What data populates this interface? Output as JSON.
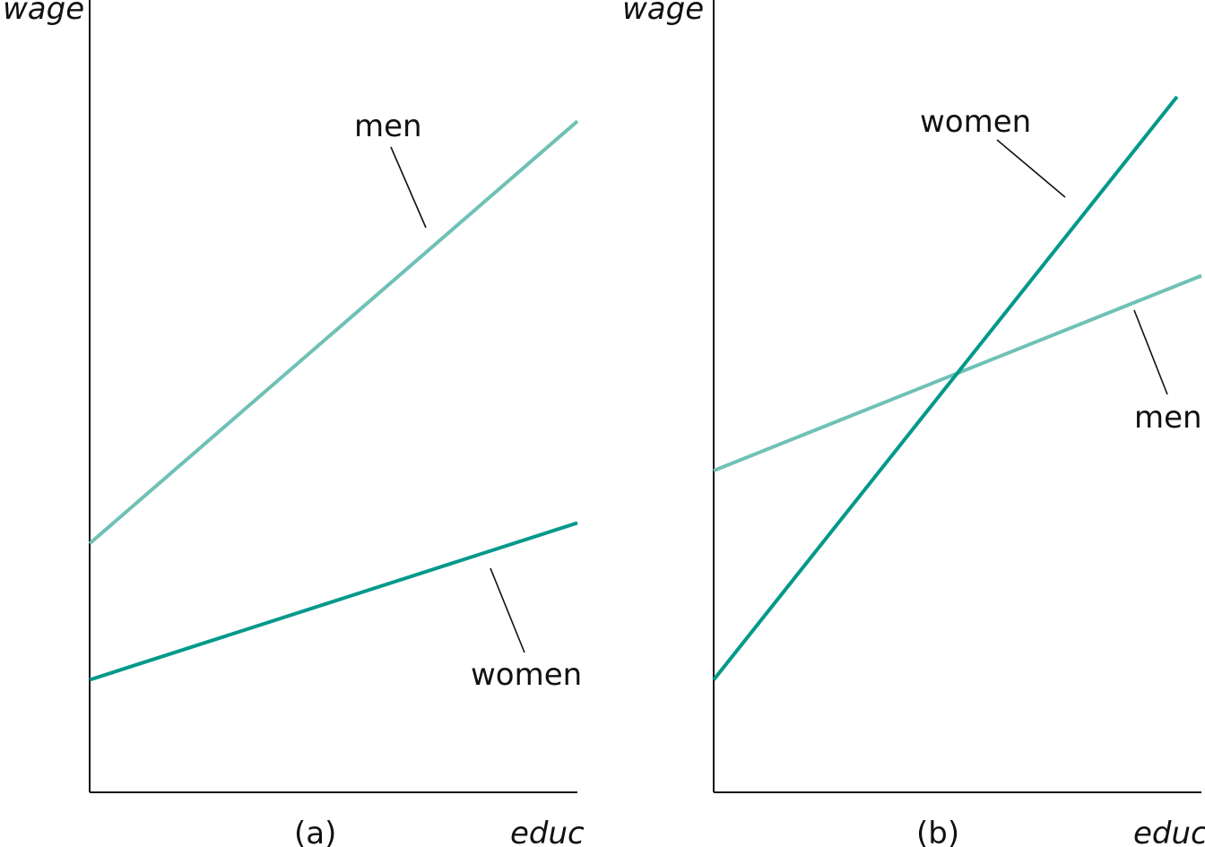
{
  "chart_data": [
    {
      "type": "line",
      "panel_label": "(a)",
      "xlabel": "educ",
      "ylabel": "wage",
      "xlim": [
        0,
        1
      ],
      "ylim": [
        0,
        1
      ],
      "grid": false,
      "series": [
        {
          "name": "men",
          "color": "#6fc1b5",
          "x": [
            0,
            1
          ],
          "y": [
            0.314,
            0.847
          ]
        },
        {
          "name": "women",
          "color": "#00998a",
          "x": [
            0,
            1
          ],
          "y": [
            0.142,
            0.34
          ]
        }
      ]
    },
    {
      "type": "line",
      "panel_label": "(b)",
      "xlabel": "educ",
      "ylabel": "wage",
      "xlim": [
        0,
        1
      ],
      "ylim": [
        0,
        1
      ],
      "grid": false,
      "series": [
        {
          "name": "men",
          "color": "#6fc1b5",
          "x": [
            0,
            1
          ],
          "y": [
            0.406,
            0.652
          ]
        },
        {
          "name": "women",
          "color": "#00998a",
          "x": [
            0,
            0.95
          ],
          "y": [
            0.142,
            0.878
          ]
        }
      ]
    }
  ]
}
